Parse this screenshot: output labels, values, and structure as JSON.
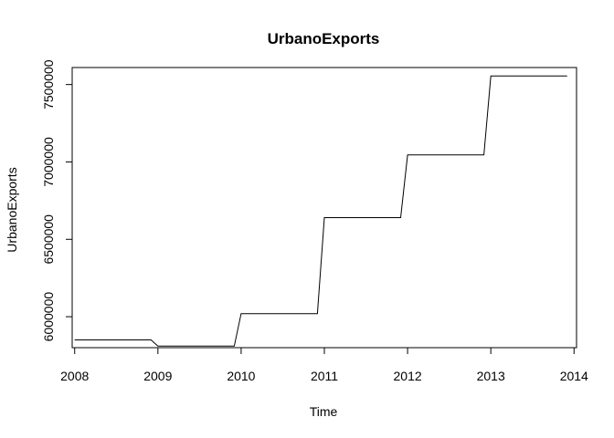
{
  "chart_data": {
    "type": "line",
    "title": "UrbanoExports",
    "xlabel": "Time",
    "ylabel": "UrbanoExports",
    "xlim": [
      2007.97,
      2014.03
    ],
    "ylim": [
      5800000,
      7610000
    ],
    "x_ticks": [
      2008,
      2009,
      2010,
      2011,
      2012,
      2013,
      2014
    ],
    "x_tick_labels": [
      "2008",
      "2009",
      "2010",
      "2011",
      "2012",
      "2013",
      "2014"
    ],
    "y_ticks": [
      6000000,
      6500000,
      7000000,
      7500000
    ],
    "y_tick_labels": [
      "6000000",
      "6500000",
      "7000000",
      "7500000"
    ],
    "grid": false,
    "line_color": "#000000",
    "series": [
      {
        "x": [
          2008.0,
          2008.917,
          2009.0,
          2009.917,
          2010.0,
          2010.917,
          2011.0,
          2011.917,
          2012.0,
          2012.917,
          2013.0,
          2013.917
        ],
        "values": [
          5850000,
          5850000,
          5810000,
          5810000,
          6020000,
          6020000,
          6640000,
          6640000,
          7045000,
          7045000,
          7555000,
          7555000
        ]
      }
    ]
  }
}
